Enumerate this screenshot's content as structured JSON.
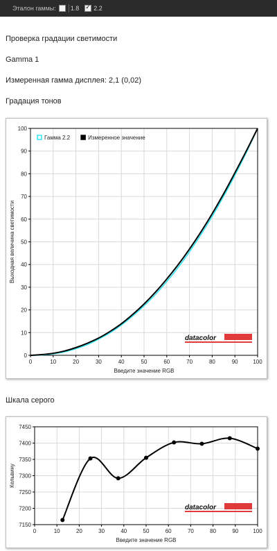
{
  "toolbar": {
    "gamma_label": "Эталон гаммы:",
    "options": [
      {
        "label": "1.8",
        "checked": false
      },
      {
        "label": "2.2",
        "checked": true
      }
    ]
  },
  "page": {
    "heading": "Проверка градации светимости",
    "profile": "Gamma 1",
    "measured": "Измеренная гамма дисплея: 2,1 (0,02)",
    "section1": "Градация тонов",
    "section2": "Шкала серого"
  },
  "brand": "datacolor",
  "colors": {
    "reference": "#33e3f0",
    "measured": "#000000",
    "brand_red": "#e03a3a"
  },
  "chart_data": [
    {
      "type": "line",
      "title": "Градация тонов",
      "xlabel": "Введите значение RGB",
      "ylabel": "Выходная величина светимости",
      "xlim": [
        0,
        100
      ],
      "ylim": [
        0,
        100
      ],
      "xticks": [
        0,
        10,
        20,
        30,
        40,
        50,
        60,
        70,
        80,
        90,
        100
      ],
      "yticks": [
        0,
        10,
        20,
        30,
        40,
        50,
        60,
        70,
        80,
        90,
        100
      ],
      "grid": true,
      "legend_position": "top-left",
      "series": [
        {
          "name": "Гамма 2.2",
          "color": "#33e3f0",
          "x": [
            0,
            5,
            10,
            15,
            20,
            25,
            30,
            35,
            40,
            45,
            50,
            55,
            60,
            65,
            70,
            75,
            80,
            85,
            90,
            95,
            100
          ],
          "y": [
            0,
            0.14,
            0.63,
            1.5,
            2.9,
            4.7,
            7.1,
            9.9,
            13.3,
            17.3,
            21.8,
            26.8,
            32.5,
            38.7,
            45.6,
            53.1,
            61.2,
            70.0,
            79.3,
            89.3,
            100
          ]
        },
        {
          "name": "Измеренное значение",
          "color": "#000000",
          "x": [
            0,
            5,
            10,
            15,
            20,
            25,
            30,
            35,
            40,
            45,
            50,
            55,
            60,
            65,
            70,
            75,
            80,
            85,
            90,
            95,
            100
          ],
          "y": [
            0,
            0.3,
            0.9,
            1.9,
            3.4,
            5.3,
            7.6,
            10.5,
            13.9,
            18.0,
            22.6,
            27.8,
            33.6,
            39.9,
            46.8,
            54.3,
            62.4,
            71.1,
            80.4,
            90.0,
            100
          ]
        }
      ]
    },
    {
      "type": "line",
      "title": "Шкала серого",
      "xlabel": "Введите значение RGB",
      "ylabel": "Кельвину",
      "xlim": [
        0,
        100
      ],
      "ylim": [
        7150,
        7450
      ],
      "xticks": [
        0,
        10,
        20,
        30,
        40,
        50,
        60,
        70,
        80,
        90,
        100
      ],
      "yticks": [
        7150,
        7200,
        7250,
        7300,
        7350,
        7400,
        7450
      ],
      "grid": true,
      "series": [
        {
          "name": "",
          "color": "#000000",
          "x": [
            12.5,
            25,
            37.5,
            50,
            62.5,
            75,
            87.5,
            100
          ],
          "y": [
            7164,
            7353,
            7292,
            7355,
            7402,
            7398,
            7415,
            7383
          ]
        }
      ]
    }
  ]
}
